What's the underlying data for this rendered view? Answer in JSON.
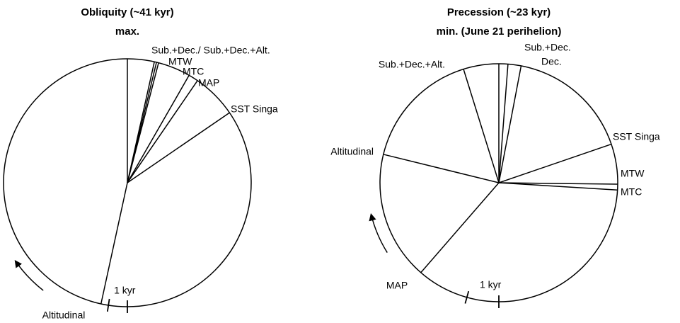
{
  "chart_data": [
    {
      "type": "radial",
      "title": "Obliquity (~41 kyr)",
      "subtitle": "max.",
      "categories": [
        null,
        "Sub.+Dec./ Sub.+Dec.+Alt.",
        null,
        "MTW",
        "MTC",
        "MAP",
        "SST Singa",
        "Altitudinal"
      ],
      "values": [
        0,
        12.6,
        13.6,
        14.6,
        29.9,
        34.5,
        55.6,
        192.3
      ],
      "scale": {
        "label": "1 kyr",
        "start": 180,
        "end": 188.8
      }
    },
    {
      "type": "radial",
      "title": "Precession (~23 kyr)",
      "subtitle": "min. (June 21 perihelion)",
      "categories": [
        null,
        "Sub.+Dec.",
        "Dec.",
        "SST Singa",
        "MTW",
        "MTC",
        "MAP",
        "Altitudinal",
        "Sub.+Dec.+Alt."
      ],
      "values": [
        0,
        4.4,
        10.8,
        71.1,
        90.7,
        93.5,
        221,
        283.8,
        342.7
      ],
      "scale": {
        "label": "1 kyr",
        "start": 180,
        "end": 195.6
      }
    }
  ]
}
